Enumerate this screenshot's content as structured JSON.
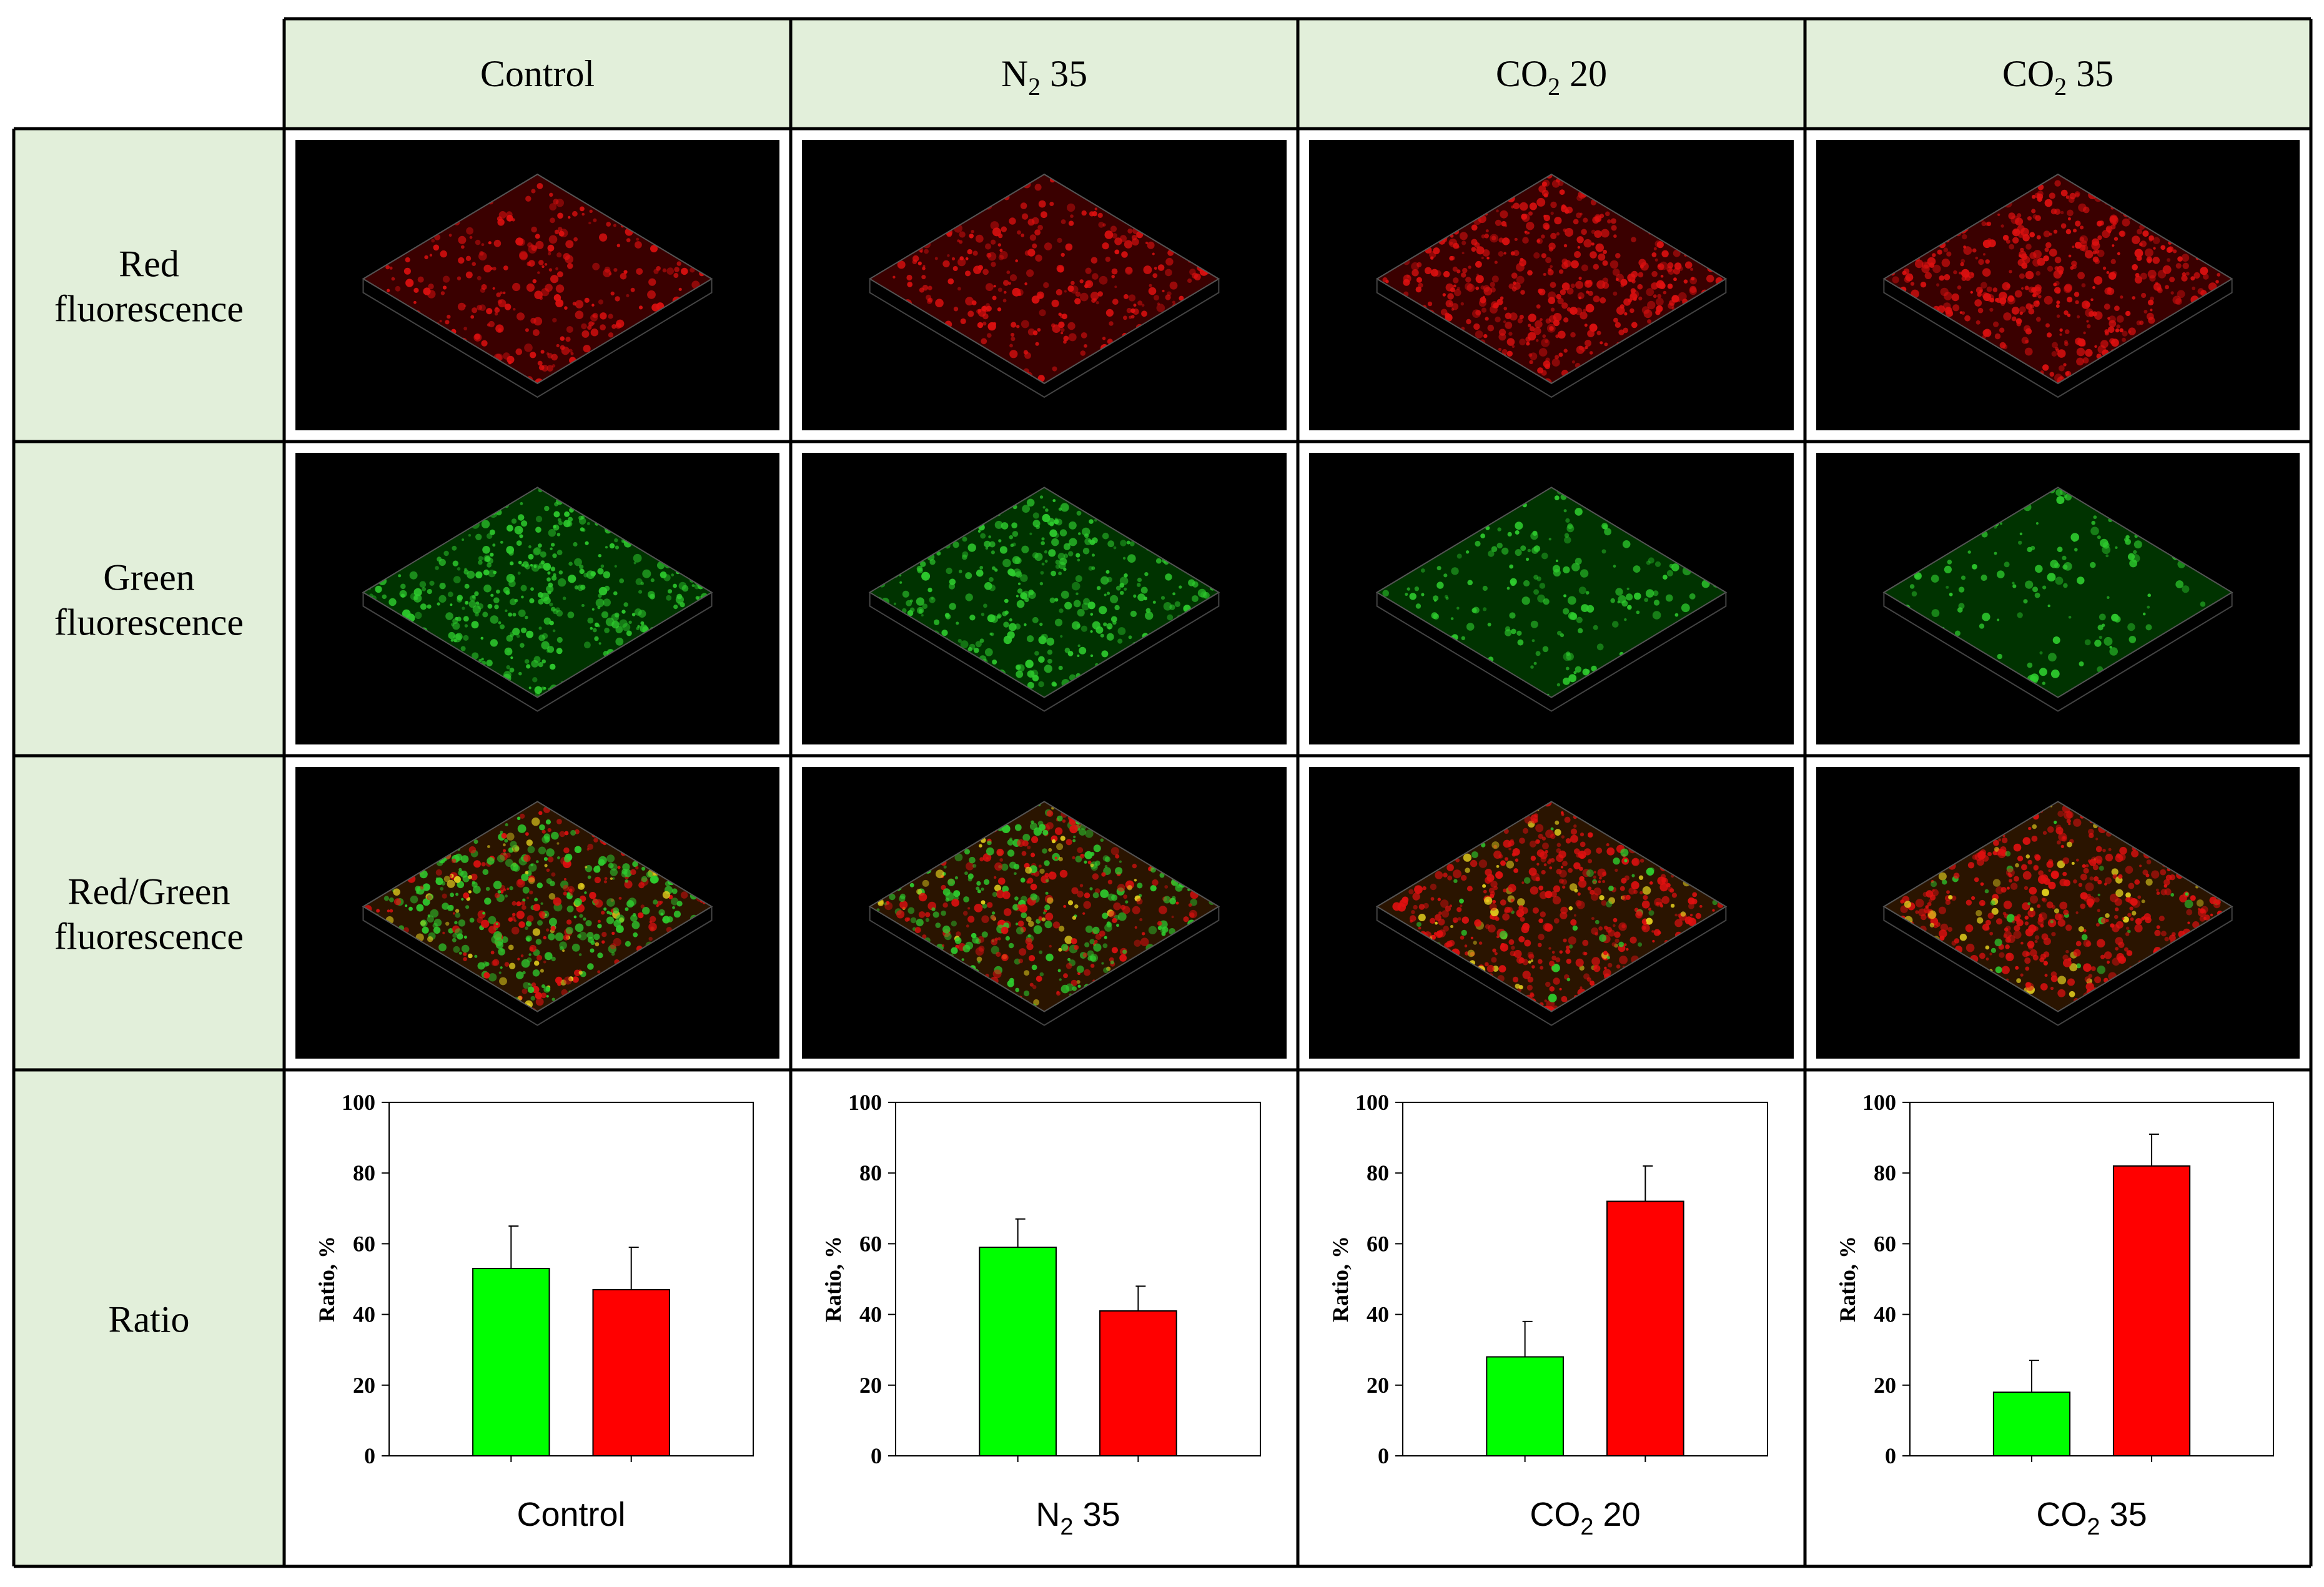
{
  "columns": [
    {
      "main": "Control",
      "sub": "",
      "tail": ""
    },
    {
      "main": "N",
      "sub": "2",
      "tail": " 35"
    },
    {
      "main": "CO",
      "sub": "2",
      "tail": " 20"
    },
    {
      "main": "CO",
      "sub": "2",
      "tail": " 35"
    }
  ],
  "rows": [
    {
      "line1": "Red",
      "line2": "fluorescence",
      "channel": "red"
    },
    {
      "line1": "Green",
      "line2": "fluorescence",
      "channel": "green"
    },
    {
      "line1": "Red/Green",
      "line2": "fluorescence",
      "channel": "merged"
    },
    {
      "line1": "Ratio",
      "line2": "",
      "channel": "chart"
    }
  ],
  "density": [
    {
      "red": 0.55,
      "green": 0.75,
      "mix": 0.35
    },
    {
      "red": 0.62,
      "green": 0.7,
      "mix": 0.45
    },
    {
      "red": 0.9,
      "green": 0.35,
      "mix": 0.82
    },
    {
      "red": 0.88,
      "green": 0.3,
      "mix": 0.85
    }
  ],
  "colors": {
    "header_bg": "#e2efda",
    "grid_line": "#000000",
    "image_bg": "#000000",
    "bar_green": "#00ff00",
    "bar_red": "#ff0000",
    "micro_red": "#e01010",
    "micro_green": "#2ecc2e",
    "micro_yellow": "#e6d21e"
  },
  "chart_data": [
    {
      "type": "bar",
      "title": "",
      "caption": {
        "main": "Control",
        "sub": "",
        "tail": ""
      },
      "ylabel": "Ratio, %",
      "ylim": [
        0,
        100
      ],
      "yticks": [
        0,
        20,
        40,
        60,
        80,
        100
      ],
      "series": [
        {
          "name": "green",
          "value": 53,
          "error": 12
        },
        {
          "name": "red",
          "value": 47,
          "error": 12
        }
      ]
    },
    {
      "type": "bar",
      "title": "",
      "caption": {
        "main": "N",
        "sub": "2",
        "tail": " 35"
      },
      "ylabel": "Ratio, %",
      "ylim": [
        0,
        100
      ],
      "yticks": [
        0,
        20,
        40,
        60,
        80,
        100
      ],
      "series": [
        {
          "name": "green",
          "value": 59,
          "error": 8
        },
        {
          "name": "red",
          "value": 41,
          "error": 7
        }
      ]
    },
    {
      "type": "bar",
      "title": "",
      "caption": {
        "main": "CO",
        "sub": "2",
        "tail": " 20"
      },
      "ylabel": "Ratio, %",
      "ylim": [
        0,
        100
      ],
      "yticks": [
        0,
        20,
        40,
        60,
        80,
        100
      ],
      "series": [
        {
          "name": "green",
          "value": 28,
          "error": 10
        },
        {
          "name": "red",
          "value": 72,
          "error": 10
        }
      ]
    },
    {
      "type": "bar",
      "title": "",
      "caption": {
        "main": "CO",
        "sub": "2",
        "tail": " 35"
      },
      "ylabel": "Ratio, %",
      "ylim": [
        0,
        100
      ],
      "yticks": [
        0,
        20,
        40,
        60,
        80,
        100
      ],
      "series": [
        {
          "name": "green",
          "value": 18,
          "error": 9
        },
        {
          "name": "red",
          "value": 82,
          "error": 9
        }
      ]
    }
  ]
}
